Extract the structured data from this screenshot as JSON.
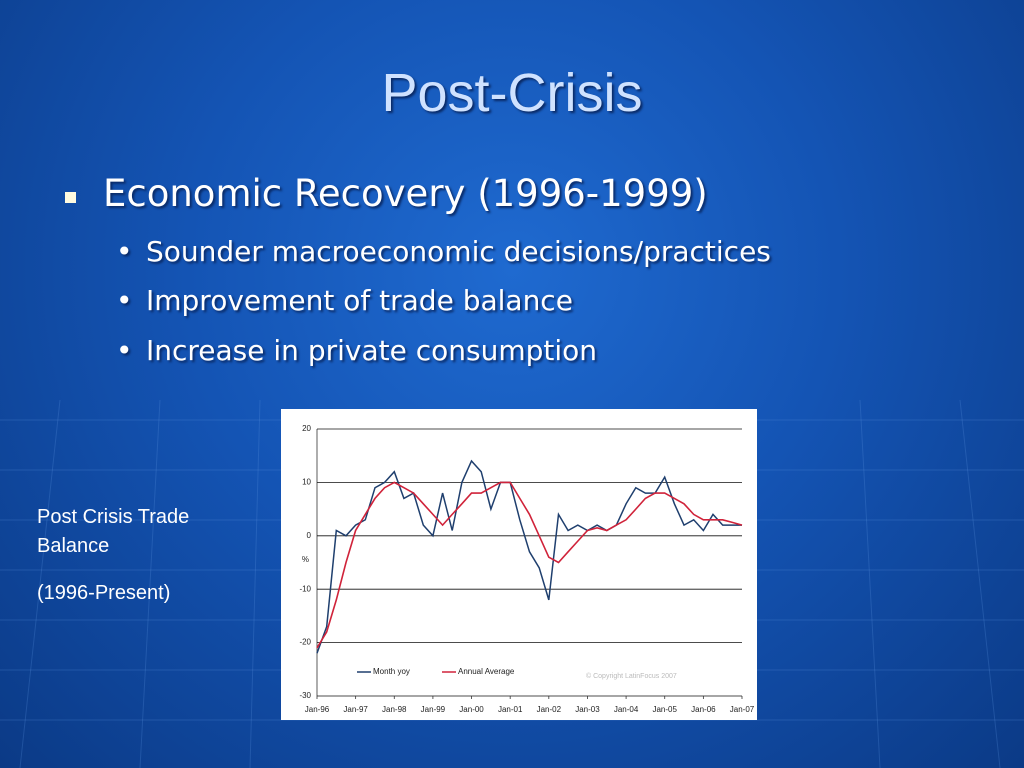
{
  "title": "Post-Crisis",
  "bullet": "Economic Recovery (1996-1999)",
  "subbullets": [
    "Sounder macroeconomic decisions/practices",
    "Improvement of trade balance",
    "Increase in private consumption"
  ],
  "caption": [
    "Post Crisis Trade Balance",
    "(1996-Present)"
  ],
  "chart_data": {
    "type": "line",
    "ylabel": "%",
    "annotation": "© Copyright LatinFocus 2007",
    "x": [
      "Jan-96",
      "Apr-96",
      "Jul-96",
      "Oct-96",
      "Jan-97",
      "Apr-97",
      "Jul-97",
      "Oct-97",
      "Jan-98",
      "Apr-98",
      "Jul-98",
      "Oct-98",
      "Jan-99",
      "Apr-99",
      "Jul-99",
      "Oct-99",
      "Jan-00",
      "Apr-00",
      "Jul-00",
      "Oct-00",
      "Jan-01",
      "Apr-01",
      "Jul-01",
      "Oct-01",
      "Jan-02",
      "Apr-02",
      "Jul-02",
      "Oct-02",
      "Jan-03",
      "Apr-03",
      "Jul-03",
      "Oct-03",
      "Jan-04",
      "Apr-04",
      "Jul-04",
      "Oct-04",
      "Jan-05",
      "Apr-05",
      "Jul-05",
      "Oct-05",
      "Jan-06",
      "Apr-06",
      "Jul-06",
      "Oct-06",
      "Jan-07"
    ],
    "xticks": [
      "Jan-96",
      "Jan-97",
      "Jan-98",
      "Jan-99",
      "Jan-00",
      "Jan-01",
      "Jan-02",
      "Jan-03",
      "Jan-04",
      "Jan-05",
      "Jan-06",
      "Jan-07"
    ],
    "series": [
      {
        "name": "Month yoy",
        "color": "#1f3f6e",
        "values": [
          -22,
          -17,
          1,
          0,
          2,
          3,
          9,
          10,
          12,
          7,
          8,
          2,
          0,
          8,
          1,
          10,
          14,
          12,
          5,
          10,
          10,
          3,
          -3,
          -6,
          -12,
          4,
          1,
          2,
          1,
          2,
          1,
          2,
          6,
          9,
          8,
          8,
          11,
          6,
          2,
          3,
          1,
          4,
          2,
          2,
          2
        ]
      },
      {
        "name": "Annual Average",
        "color": "#d0233a",
        "values": [
          -21,
          -18,
          -12,
          -5,
          1,
          4,
          7,
          9,
          10,
          9,
          8,
          6,
          4,
          2,
          4,
          6,
          8,
          8,
          9,
          10,
          10,
          7,
          4,
          0,
          -4,
          -5,
          -3,
          -1,
          1,
          1.5,
          1,
          2,
          3,
          5,
          7,
          8,
          8,
          7,
          6,
          4,
          3,
          3,
          3,
          2.5,
          2
        ]
      }
    ],
    "ylim": [
      -30,
      20
    ],
    "yticks": [
      -30,
      -20,
      -10,
      0,
      10,
      20
    ],
    "grid": true,
    "legend": "lower left"
  }
}
